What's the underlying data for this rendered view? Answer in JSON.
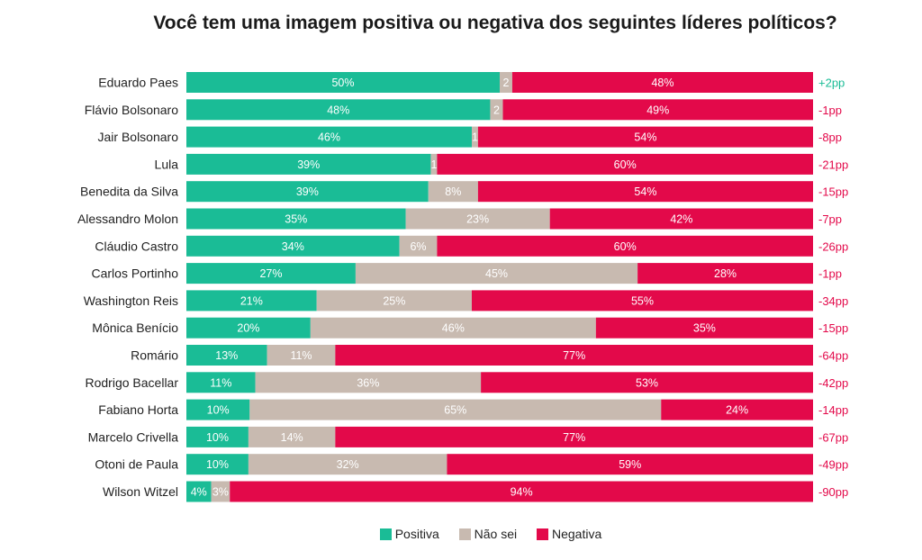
{
  "chart_data": {
    "type": "bar",
    "stacked": true,
    "orientation": "horizontal",
    "title": "Você tem uma imagem positiva ou negativa dos seguintes líderes políticos?",
    "categories": [
      "Eduardo Paes",
      "Flávio Bolsonaro",
      "Jair Bolsonaro",
      "Lula",
      "Benedita da Silva",
      "Alessandro Molon",
      "Cláudio Castro",
      "Carlos Portinho",
      "Washington Reis",
      "Mônica Benício",
      "Romário",
      "Rodrigo Bacellar",
      "Fabiano Horta",
      "Marcelo Crivella",
      "Otoni de Paula",
      "Wilson Witzel"
    ],
    "series": [
      {
        "name": "Positiva",
        "color": "#1abc96",
        "values": [
          50,
          48,
          46,
          39,
          39,
          35,
          34,
          27,
          21,
          20,
          13,
          11,
          10,
          10,
          10,
          4
        ],
        "labels": [
          "50%",
          "48%",
          "46%",
          "39%",
          "39%",
          "35%",
          "34%",
          "27%",
          "21%",
          "20%",
          "13%",
          "11%",
          "10%",
          "10%",
          "10%",
          "4%"
        ]
      },
      {
        "name": "Não sei",
        "color": "#c8bab0",
        "values": [
          2,
          2,
          1,
          1,
          8,
          23,
          6,
          45,
          25,
          46,
          11,
          36,
          65,
          14,
          32,
          3
        ],
        "labels": [
          "2",
          "2",
          "1",
          "1",
          "8%",
          "23%",
          "6%",
          "45%",
          "25%",
          "46%",
          "11%",
          "36%",
          "65%",
          "14%",
          "32%",
          "3%"
        ]
      },
      {
        "name": "Negativa",
        "color": "#e3094a",
        "values": [
          48,
          49,
          54,
          60,
          54,
          42,
          60,
          28,
          55,
          35,
          77,
          53,
          24,
          77,
          59,
          94
        ],
        "labels": [
          "48%",
          "49%",
          "54%",
          "60%",
          "54%",
          "42%",
          "60%",
          "28%",
          "55%",
          "35%",
          "77%",
          "53%",
          "24%",
          "77%",
          "59%",
          "94%"
        ]
      }
    ],
    "net": [
      "+2pp",
      "-1pp",
      "-8pp",
      "-21pp",
      "-15pp",
      "-7pp",
      "-26pp",
      "-1pp",
      "-34pp",
      "-15pp",
      "-64pp",
      "-42pp",
      "-14pp",
      "-67pp",
      "-49pp",
      "-90pp"
    ],
    "positive_net_color": "#1abc96",
    "negative_net_color": "#e3094a",
    "legend_position": "bottom",
    "grid": false
  },
  "legend": [
    {
      "label": "Positiva",
      "color": "#1abc96"
    },
    {
      "label": "Não sei",
      "color": "#c8bab0"
    },
    {
      "label": "Negativa",
      "color": "#e3094a"
    }
  ]
}
